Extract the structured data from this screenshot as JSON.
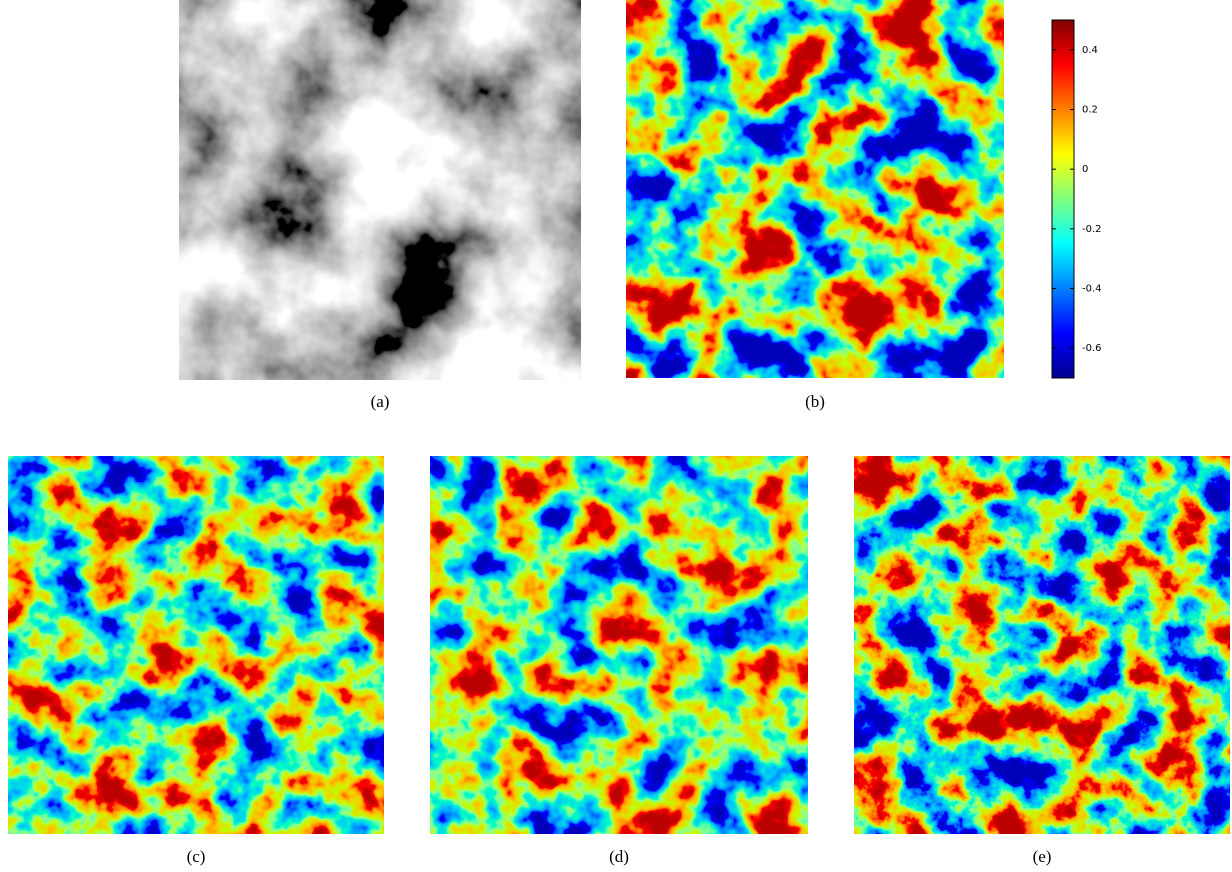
{
  "panels": [
    {
      "label": "(a)"
    },
    {
      "label": "(b)"
    },
    {
      "label": "(c)"
    },
    {
      "label": "(d)"
    },
    {
      "label": "(e)"
    }
  ],
  "colorbar": {
    "ylim": [
      -0.7,
      0.5
    ],
    "yticks": [
      0.4,
      0.2,
      0,
      -0.2,
      -0.4,
      -0.6
    ]
  }
}
